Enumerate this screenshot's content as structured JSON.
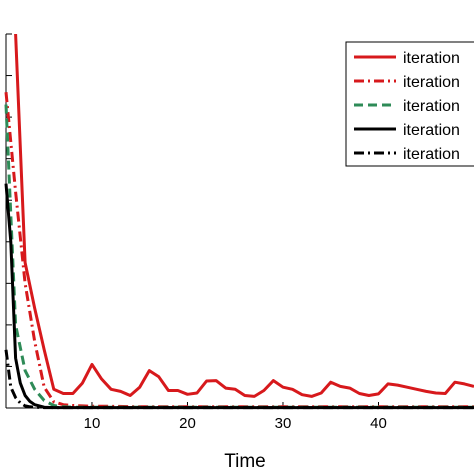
{
  "chart_data": {
    "type": "line",
    "title": "",
    "xlabel": "Time",
    "ylabel": "",
    "xlim": [
      1,
      50
    ],
    "ylim": [
      0,
      9
    ],
    "xticks": [
      10,
      20,
      30,
      40
    ],
    "yticks": [
      0,
      1,
      2,
      3,
      4,
      5,
      6,
      7,
      8,
      9
    ],
    "grid": false,
    "legend": "top-right",
    "series": [
      {
        "name": "iteration",
        "color": "#d7191c",
        "dash": "solid",
        "x": [
          2,
          3,
          4,
          5,
          6,
          7,
          8,
          9,
          10,
          11,
          12,
          13,
          14,
          15,
          16,
          17,
          18,
          19,
          20,
          21,
          22,
          23,
          24,
          25,
          26,
          27,
          28,
          29,
          30,
          31,
          32,
          33,
          34,
          35,
          36,
          37,
          38,
          39,
          40,
          41,
          42,
          43,
          44,
          45,
          46,
          47,
          48,
          49,
          50
        ],
        "y": [
          9.0,
          3.5,
          2.4,
          1.4,
          0.45,
          0.35,
          0.35,
          0.6,
          1.05,
          0.7,
          0.45,
          0.4,
          0.3,
          0.5,
          0.9,
          0.75,
          0.42,
          0.42,
          0.33,
          0.36,
          0.65,
          0.66,
          0.48,
          0.45,
          0.3,
          0.28,
          0.42,
          0.66,
          0.5,
          0.45,
          0.32,
          0.28,
          0.36,
          0.62,
          0.52,
          0.48,
          0.35,
          0.3,
          0.34,
          0.58,
          0.55,
          0.5,
          0.45,
          0.4,
          0.36,
          0.35,
          0.62,
          0.58,
          0.52
        ]
      },
      {
        "name": "iteration",
        "color": "#d7191c",
        "dash": "dashdot",
        "x": [
          1,
          2,
          3,
          4,
          5,
          6,
          7,
          8,
          9,
          10,
          12,
          15,
          20,
          25,
          30,
          35,
          40,
          45,
          50
        ],
        "y": [
          7.6,
          5.2,
          3.0,
          1.6,
          0.5,
          0.15,
          0.08,
          0.06,
          0.05,
          0.04,
          0.04,
          0.03,
          0.03,
          0.03,
          0.03,
          0.03,
          0.03,
          0.03,
          0.03
        ]
      },
      {
        "name": "iteration",
        "color": "#2e8b57",
        "dash": "dashed",
        "x": [
          1,
          2,
          3,
          4,
          5,
          6,
          7,
          8,
          10,
          15,
          20,
          30,
          40,
          50
        ],
        "y": [
          7.3,
          2.0,
          0.9,
          0.45,
          0.18,
          0.06,
          0.03,
          0.02,
          0.02,
          0.02,
          0.02,
          0.02,
          0.02,
          0.02
        ]
      },
      {
        "name": "iteration",
        "color": "#000000",
        "dash": "solid",
        "x": [
          1,
          1.5,
          2,
          2.5,
          3,
          3.5,
          4,
          5,
          6,
          8,
          10,
          20,
          30,
          40,
          50
        ],
        "y": [
          5.4,
          4.0,
          1.2,
          0.6,
          0.3,
          0.16,
          0.08,
          0.02,
          0.01,
          0.01,
          0.01,
          0.01,
          0.01,
          0.01,
          0.01
        ]
      },
      {
        "name": "iteration",
        "color": "#000000",
        "dash": "dashdot",
        "x": [
          1,
          1.5,
          2,
          2.5,
          3,
          3.5,
          4,
          5,
          6,
          8,
          10,
          20,
          30,
          40,
          50
        ],
        "y": [
          1.4,
          0.5,
          0.25,
          0.12,
          0.05,
          0.03,
          0.02,
          0.01,
          0.01,
          0.01,
          0.01,
          0.01,
          0.01,
          0.01,
          0.01
        ]
      }
    ]
  }
}
